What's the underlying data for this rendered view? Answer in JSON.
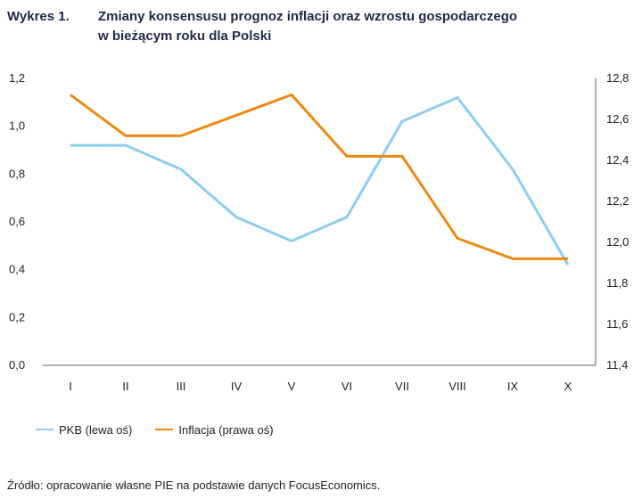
{
  "header": {
    "number": "Wykres 1.",
    "title_line1": "Zmiany konsensusu prognoz inflacji oraz wzrostu gospodarczego",
    "title_line2": "w bieżącym roku dla Polski"
  },
  "source": "Źródło: opracowanie własne PIE na podstawie danych FocusEconomics.",
  "chart_data": {
    "type": "line",
    "categories": [
      "I",
      "II",
      "III",
      "IV",
      "V",
      "VI",
      "VII",
      "VIII",
      "IX",
      "X"
    ],
    "series": [
      {
        "name": "PKB (lewa oś)",
        "axis": "left",
        "color": "#8ecdf0",
        "values": [
          0.92,
          0.92,
          0.82,
          0.62,
          0.52,
          0.62,
          1.02,
          1.12,
          0.82,
          0.42
        ]
      },
      {
        "name": "Inflacja (prawa oś)",
        "axis": "right",
        "color": "#ee8a11",
        "values": [
          12.72,
          12.52,
          12.52,
          12.62,
          12.72,
          12.42,
          12.42,
          12.02,
          11.92,
          11.92
        ]
      }
    ],
    "y_left": {
      "min": 0,
      "max": 1.2,
      "ticks": [
        "0,0",
        "0,2",
        "0,4",
        "0,6",
        "0,8",
        "1,0",
        "1,2"
      ]
    },
    "y_right": {
      "min": 11.4,
      "max": 12.8,
      "ticks": [
        "11,4",
        "11,6",
        "11,8",
        "12,0",
        "12,2",
        "12,4",
        "12,6",
        "12,8"
      ]
    },
    "grid": false,
    "legend": "bottom-left"
  }
}
